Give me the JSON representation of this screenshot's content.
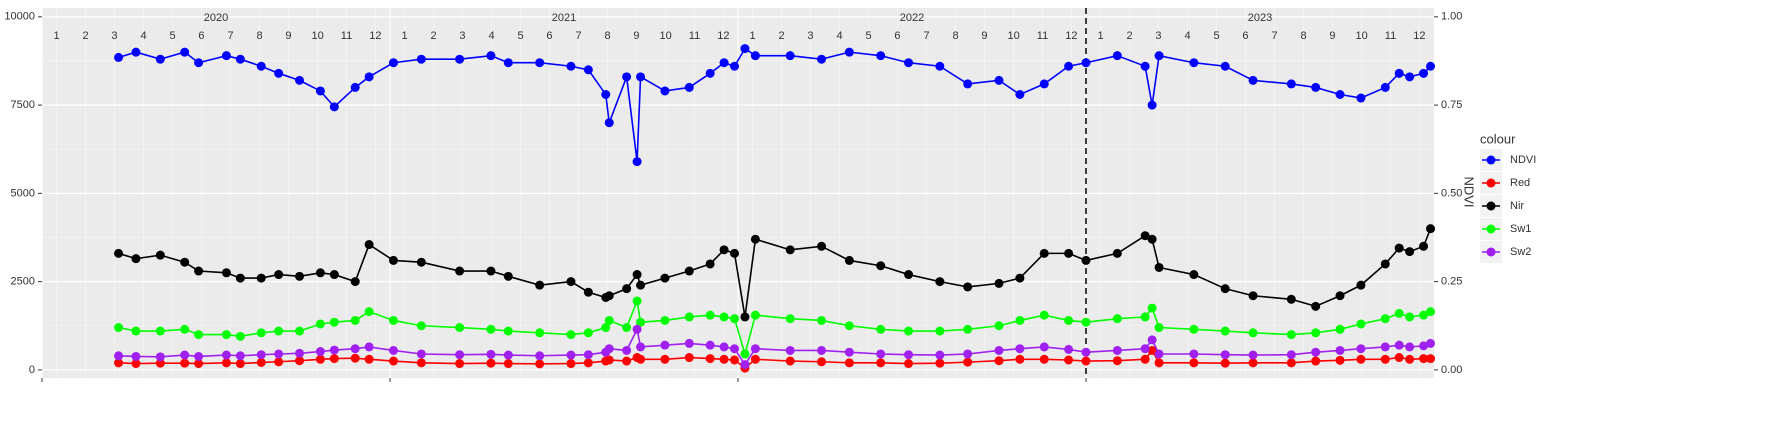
{
  "chart_data": {
    "type": "line",
    "x": [
      2020.22,
      2020.27,
      2020.34,
      2020.41,
      2020.45,
      2020.53,
      2020.57,
      2020.63,
      2020.68,
      2020.74,
      2020.8,
      2020.84,
      2020.9,
      2020.94,
      2021.01,
      2021.09,
      2021.2,
      2021.29,
      2021.34,
      2021.43,
      2021.52,
      2021.57,
      2021.62,
      2021.63,
      2021.68,
      2021.71,
      2021.72,
      2021.79,
      2021.86,
      2021.92,
      2021.96,
      2021.99,
      2022.02,
      2022.05,
      2022.15,
      2022.24,
      2022.32,
      2022.41,
      2022.49,
      2022.58,
      2022.66,
      2022.75,
      2022.81,
      2022.88,
      2022.95,
      2023.0,
      2023.09,
      2023.17,
      2023.19,
      2023.21,
      2023.31,
      2023.4,
      2023.48,
      2023.59,
      2023.66,
      2023.73,
      2023.79,
      2023.86,
      2023.9,
      2023.93,
      2023.97,
      2023.99
    ],
    "series": [
      {
        "name": "NDVI",
        "color": "#0000ff",
        "axis": "y2",
        "values": [
          0.885,
          0.9,
          0.88,
          0.9,
          0.87,
          0.89,
          0.88,
          0.86,
          0.84,
          0.82,
          0.79,
          0.745,
          0.8,
          0.83,
          0.87,
          0.88,
          0.88,
          0.89,
          0.87,
          0.87,
          0.86,
          0.85,
          0.78,
          0.7,
          0.83,
          0.59,
          0.83,
          0.79,
          0.8,
          0.84,
          0.87,
          0.86,
          0.91,
          0.89,
          0.89,
          0.88,
          0.9,
          0.89,
          0.87,
          0.86,
          0.81,
          0.82,
          0.78,
          0.81,
          0.86,
          0.87,
          0.89,
          0.86,
          0.75,
          0.89,
          0.87,
          0.86,
          0.82,
          0.81,
          0.8,
          0.78,
          0.77,
          0.8,
          0.84,
          0.83,
          0.84,
          0.86
        ]
      },
      {
        "name": "Red",
        "color": "#ff0000",
        "values": [
          200,
          180,
          190,
          190,
          180,
          200,
          180,
          210,
          230,
          260,
          300,
          320,
          330,
          300,
          250,
          200,
          180,
          190,
          180,
          170,
          180,
          200,
          250,
          280,
          250,
          350,
          300,
          300,
          350,
          320,
          300,
          280,
          50,
          300,
          250,
          230,
          200,
          200,
          180,
          190,
          220,
          260,
          300,
          300,
          280,
          250,
          260,
          300,
          550,
          200,
          200,
          190,
          200,
          200,
          250,
          270,
          300,
          300,
          350,
          300,
          320,
          320
        ]
      },
      {
        "name": "Nir",
        "color": "#000000",
        "values": [
          3300,
          3150,
          3250,
          3050,
          2800,
          2750,
          2600,
          2600,
          2700,
          2650,
          2750,
          2700,
          2500,
          3550,
          3100,
          3050,
          2800,
          2800,
          2650,
          2400,
          2500,
          2200,
          2050,
          2100,
          2300,
          2700,
          2400,
          2600,
          2800,
          3000,
          3400,
          3300,
          1500,
          3700,
          3400,
          3500,
          3100,
          2950,
          2700,
          2500,
          2350,
          2450,
          2600,
          3300,
          3300,
          3100,
          3300,
          3800,
          3700,
          2900,
          2700,
          2300,
          2100,
          2000,
          1800,
          2100,
          2400,
          3000,
          3450,
          3350,
          3500,
          4000
        ]
      },
      {
        "name": "Sw1",
        "color": "#00ff00",
        "values": [
          1200,
          1100,
          1100,
          1150,
          1000,
          1000,
          950,
          1050,
          1100,
          1100,
          1300,
          1350,
          1400,
          1650,
          1400,
          1250,
          1200,
          1150,
          1100,
          1050,
          1000,
          1050,
          1200,
          1400,
          1200,
          1950,
          1350,
          1400,
          1500,
          1550,
          1500,
          1450,
          450,
          1550,
          1450,
          1400,
          1250,
          1150,
          1100,
          1100,
          1150,
          1250,
          1400,
          1550,
          1400,
          1350,
          1450,
          1500,
          1750,
          1200,
          1150,
          1100,
          1050,
          1000,
          1050,
          1150,
          1300,
          1450,
          1600,
          1500,
          1550,
          1650
        ]
      },
      {
        "name": "Sw2",
        "color": "#a020f0",
        "values": [
          400,
          380,
          370,
          420,
          380,
          420,
          400,
          430,
          450,
          470,
          520,
          560,
          600,
          650,
          550,
          450,
          430,
          440,
          420,
          400,
          420,
          430,
          500,
          600,
          550,
          1150,
          650,
          700,
          750,
          700,
          650,
          600,
          150,
          600,
          550,
          550,
          500,
          450,
          430,
          420,
          450,
          550,
          600,
          650,
          580,
          500,
          550,
          600,
          850,
          450,
          450,
          430,
          420,
          430,
          500,
          550,
          600,
          650,
          700,
          650,
          680,
          750
        ]
      }
    ],
    "xlim": [
      2020.0,
      2024.0
    ],
    "xticks": [
      2020,
      2021,
      2022,
      2023
    ],
    "ylim": [
      -230,
      10250
    ],
    "yticks": [
      0,
      2500,
      5000,
      7500,
      10000
    ],
    "y2lim": [
      -0.023,
      1.025
    ],
    "y2ticks": [
      {
        "value": 0,
        "label": "0.00"
      },
      {
        "value": 0.25,
        "label": "0.25"
      },
      {
        "value": 0.5,
        "label": "0.50"
      },
      {
        "value": 0.75,
        "label": "0.75"
      },
      {
        "value": 1,
        "label": "1.00"
      }
    ],
    "y2label": "NDVI",
    "year_labels": [
      {
        "value": 2020.5,
        "label": "2020"
      },
      {
        "value": 2021.5,
        "label": "2021"
      },
      {
        "value": 2022.5,
        "label": "2022"
      },
      {
        "value": 2023.5,
        "label": "2023"
      }
    ],
    "month_labels": [
      {
        "value": 2020.042,
        "label": "1"
      },
      {
        "value": 2020.125,
        "label": "2"
      },
      {
        "value": 2020.208,
        "label": "3"
      },
      {
        "value": 2020.292,
        "label": "4"
      },
      {
        "value": 2020.375,
        "label": "5"
      },
      {
        "value": 2020.458,
        "label": "6"
      },
      {
        "value": 2020.542,
        "label": "7"
      },
      {
        "value": 2020.625,
        "label": "8"
      },
      {
        "value": 2020.708,
        "label": "9"
      },
      {
        "value": 2020.792,
        "label": "10"
      },
      {
        "value": 2020.875,
        "label": "11"
      },
      {
        "value": 2020.958,
        "label": "12"
      },
      {
        "value": 2021.042,
        "label": "1"
      },
      {
        "value": 2021.125,
        "label": "2"
      },
      {
        "value": 2021.208,
        "label": "3"
      },
      {
        "value": 2021.292,
        "label": "4"
      },
      {
        "value": 2021.375,
        "label": "5"
      },
      {
        "value": 2021.458,
        "label": "6"
      },
      {
        "value": 2021.542,
        "label": "7"
      },
      {
        "value": 2021.625,
        "label": "8"
      },
      {
        "value": 2021.708,
        "label": "9"
      },
      {
        "value": 2021.792,
        "label": "10"
      },
      {
        "value": 2021.875,
        "label": "11"
      },
      {
        "value": 2021.958,
        "label": "12"
      },
      {
        "value": 2022.042,
        "label": "1"
      },
      {
        "value": 2022.125,
        "label": "2"
      },
      {
        "value": 2022.208,
        "label": "3"
      },
      {
        "value": 2022.292,
        "label": "4"
      },
      {
        "value": 2022.375,
        "label": "5"
      },
      {
        "value": 2022.458,
        "label": "6"
      },
      {
        "value": 2022.542,
        "label": "7"
      },
      {
        "value": 2022.625,
        "label": "8"
      },
      {
        "value": 2022.708,
        "label": "9"
      },
      {
        "value": 2022.792,
        "label": "10"
      },
      {
        "value": 2022.875,
        "label": "11"
      },
      {
        "value": 2022.958,
        "label": "12"
      },
      {
        "value": 2023.042,
        "label": "1"
      },
      {
        "value": 2023.125,
        "label": "2"
      },
      {
        "value": 2023.208,
        "label": "3"
      },
      {
        "value": 2023.292,
        "label": "4"
      },
      {
        "value": 2023.375,
        "label": "5"
      },
      {
        "value": 2023.458,
        "label": "6"
      },
      {
        "value": 2023.542,
        "label": "7"
      },
      {
        "value": 2023.625,
        "label": "8"
      },
      {
        "value": 2023.708,
        "label": "9"
      },
      {
        "value": 2023.792,
        "label": "10"
      },
      {
        "value": 2023.875,
        "label": "11"
      },
      {
        "value": 2023.958,
        "label": "12"
      }
    ],
    "vline": 2023,
    "legend_title": "colour",
    "legend": "right",
    "grid": true
  }
}
